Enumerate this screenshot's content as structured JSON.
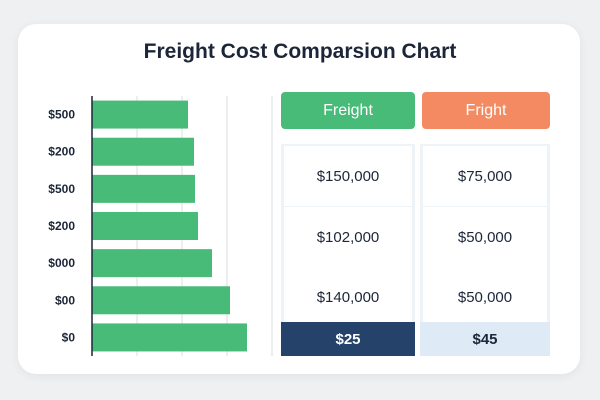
{
  "title": "Freight Cost Comparsion Chart",
  "colors": {
    "bar": "#48bb78",
    "freight_header": "#48bb78",
    "fright_header": "#f48a62",
    "freight_total_bg": "#24426a",
    "fright_total_bg": "#deeaf6"
  },
  "chart_data": {
    "type": "bar",
    "orientation": "horizontal",
    "categories": [
      "$500",
      "$200",
      "$500",
      "$200",
      "$000",
      "$00",
      "$0"
    ],
    "values": [
      96,
      102,
      103,
      106,
      120,
      138,
      155
    ],
    "xlim": [
      0,
      180
    ],
    "grid": true
  },
  "table": {
    "columns": [
      {
        "header": "Freight",
        "values": [
          "$150,000",
          "$102,000",
          "$140,000"
        ],
        "total": "$25"
      },
      {
        "header": "Fright",
        "values": [
          "$75,000",
          "$50,000",
          "$50,000"
        ],
        "total": "$45"
      }
    ]
  }
}
